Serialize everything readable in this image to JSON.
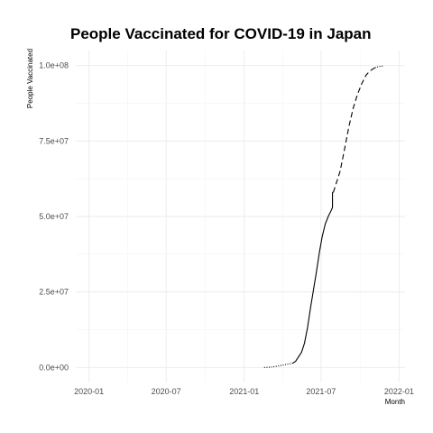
{
  "chart_data": {
    "type": "line",
    "title": "People Vaccinated for COVID-19 in Japan",
    "xlabel": "Month",
    "ylabel": "People Vaccinated",
    "x_range": [
      "2019-12-01",
      "2022-01-15"
    ],
    "ylim": [
      -5000000,
      105000000
    ],
    "x_ticks": [
      "2020-01",
      "2020-07",
      "2021-01",
      "2021-07",
      "2022-01"
    ],
    "y_ticks": [
      0,
      25000000,
      50000000,
      75000000,
      100000000
    ],
    "y_tick_labels": [
      "0.0e+00",
      "2.5e+07",
      "5.0e+07",
      "7.5e+07",
      "1.0e+08"
    ],
    "grid": true,
    "legend": "none",
    "line_color": "#000000",
    "series": [
      {
        "line_style": "dotted",
        "x": [
          "2021-02-17",
          "2021-02-24",
          "2021-03-03",
          "2021-03-10",
          "2021-03-17",
          "2021-03-24",
          "2021-03-31",
          "2021-04-07",
          "2021-04-14",
          "2021-04-21",
          "2021-04-25"
        ],
        "values": [
          0,
          20000,
          60000,
          200000,
          350000,
          500000,
          700000,
          900000,
          1100000,
          1250000,
          1350000
        ]
      },
      {
        "line_style": "solid",
        "x": [
          "2021-04-25",
          "2021-05-02",
          "2021-05-09",
          "2021-05-16",
          "2021-05-23",
          "2021-05-30",
          "2021-06-06",
          "2021-06-13",
          "2021-06-20",
          "2021-06-27",
          "2021-07-04",
          "2021-07-11",
          "2021-07-18",
          "2021-07-25",
          "2021-07-28",
          "2021-07-28",
          "2021-07-30"
        ],
        "values": [
          1350000,
          2000000,
          3500000,
          5000000,
          8000000,
          13000000,
          19500000,
          25500000,
          31500000,
          38000000,
          43500000,
          47500000,
          50000000,
          52000000,
          53000000,
          58000000,
          58000000
        ]
      },
      {
        "line_style": "dashed",
        "x": [
          "2021-07-30",
          "2021-08-15",
          "2021-08-25",
          "2021-09-05",
          "2021-09-15",
          "2021-09-25",
          "2021-10-05",
          "2021-10-15",
          "2021-10-25",
          "2021-11-05"
        ],
        "values": [
          58000000,
          65000000,
          72000000,
          80000000,
          86000000,
          90500000,
          94000000,
          96800000,
          98300000,
          99300000
        ]
      },
      {
        "line_style": "dotted",
        "x": [
          "2021-11-05",
          "2021-11-15",
          "2021-11-25"
        ],
        "values": [
          99300000,
          99700000,
          99900000
        ]
      }
    ]
  }
}
